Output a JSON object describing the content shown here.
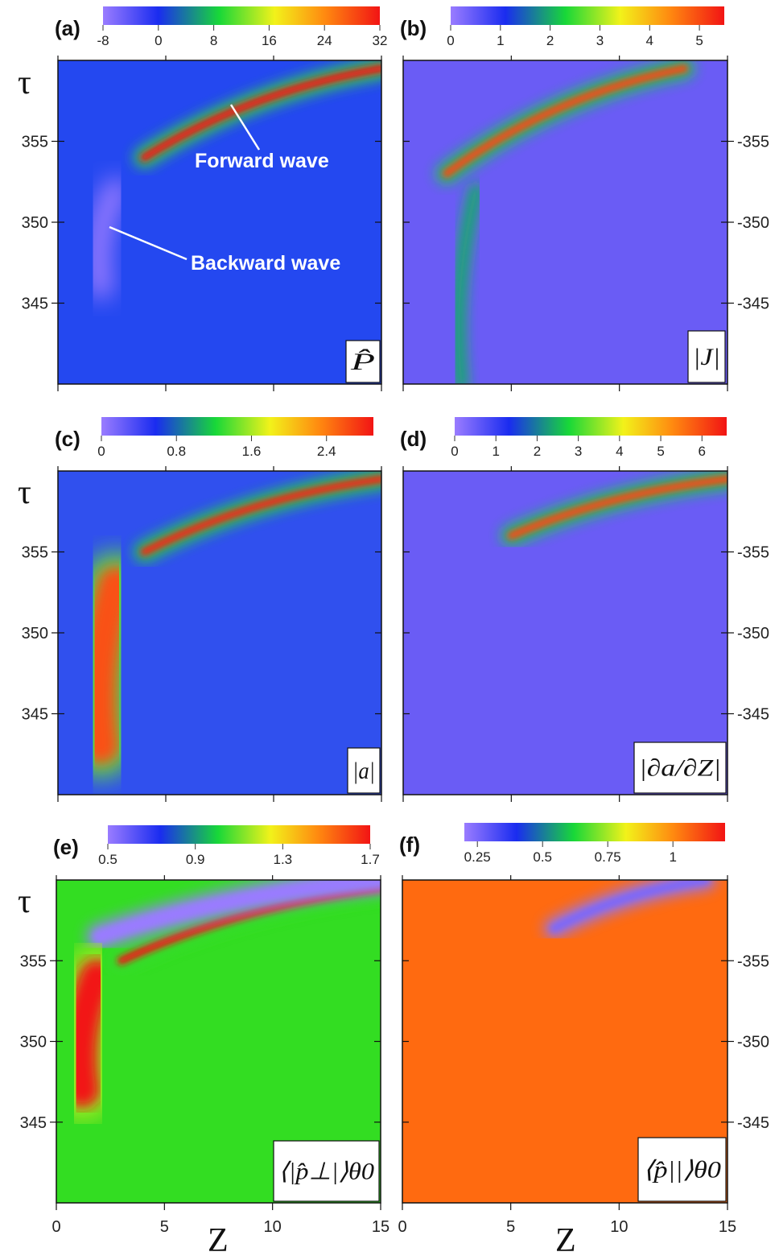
{
  "figure": {
    "xlabel": "Z",
    "ylabel": "τ",
    "annotations": {
      "forward": "Forward wave",
      "backward": "Backward wave"
    }
  },
  "chart_data": [
    {
      "id": "a",
      "type": "heatmap",
      "panel_label": "(a)",
      "quantity": "P̂",
      "x_range": [
        0,
        15
      ],
      "y_range": [
        340,
        360
      ],
      "x_ticks": [
        0,
        5,
        10,
        15
      ],
      "y_ticks": [
        345,
        350,
        355
      ],
      "colorbar": {
        "range": [
          -8,
          32
        ],
        "ticks": [
          "-8",
          "0",
          "8",
          "16",
          "24",
          "32"
        ]
      },
      "background": "#2448f0",
      "features": [
        {
          "kind": "forward_wave",
          "z_start": 4,
          "z_end": 15,
          "tau_start": 354,
          "tau_end": 359.5,
          "peak": 32
        },
        {
          "kind": "backward_wave",
          "z": 2,
          "tau_range": [
            346,
            352
          ],
          "value": -8
        }
      ]
    },
    {
      "id": "b",
      "type": "heatmap",
      "panel_label": "(b)",
      "quantity": "|J|",
      "x_range": [
        0,
        15
      ],
      "y_range": [
        340,
        360
      ],
      "x_ticks": [
        0,
        5,
        10,
        15
      ],
      "y_ticks": [
        345,
        350,
        355
      ],
      "colorbar": {
        "range": [
          0,
          5.5
        ],
        "ticks": [
          "0",
          "1",
          "2",
          "3",
          "4",
          "5"
        ]
      },
      "background": "#6a5cf5",
      "features": [
        {
          "kind": "forward_wave",
          "z_start": 2,
          "z_end": 13,
          "tau_start": 353,
          "tau_end": 359.5,
          "peak": 5
        },
        {
          "kind": "trail",
          "z": 2.7,
          "tau_range": [
            340,
            352
          ],
          "value": 2
        }
      ]
    },
    {
      "id": "c",
      "type": "heatmap",
      "panel_label": "(c)",
      "quantity": "|a|",
      "x_range": [
        0,
        15
      ],
      "y_range": [
        340,
        360
      ],
      "x_ticks": [
        0,
        5,
        10,
        15
      ],
      "y_ticks": [
        345,
        350,
        355
      ],
      "colorbar": {
        "range": [
          0,
          2.9
        ],
        "ticks": [
          "0",
          "0.8",
          "1.6",
          "2.4"
        ]
      },
      "background": "#3050ee",
      "features": [
        {
          "kind": "forward_wave",
          "z_start": 4,
          "z_end": 15,
          "tau_start": 355,
          "tau_end": 359.5,
          "peak": 2.8
        },
        {
          "kind": "blob",
          "z": 2,
          "tau_range": [
            343,
            353
          ],
          "value": 2.6
        }
      ]
    },
    {
      "id": "d",
      "type": "heatmap",
      "panel_label": "(d)",
      "quantity": "|∂a/∂Z|",
      "x_range": [
        0,
        15
      ],
      "y_range": [
        340,
        360
      ],
      "x_ticks": [
        0,
        5,
        10,
        15
      ],
      "y_ticks": [
        345,
        350,
        355
      ],
      "colorbar": {
        "range": [
          0,
          6.6
        ],
        "ticks": [
          "0",
          "1",
          "2",
          "3",
          "4",
          "5",
          "6"
        ]
      },
      "background": "#6a5cf5",
      "features": [
        {
          "kind": "forward_wave",
          "z_start": 5,
          "z_end": 15,
          "tau_start": 356,
          "tau_end": 359.5,
          "peak": 6
        }
      ]
    },
    {
      "id": "e",
      "type": "heatmap",
      "panel_label": "(e)",
      "quantity": "⟨|p̂⊥|⟩θ0",
      "x_range": [
        0,
        15
      ],
      "y_range": [
        340,
        360
      ],
      "x_ticks": [
        0,
        5,
        10,
        15
      ],
      "y_ticks": [
        345,
        350,
        355
      ],
      "colorbar": {
        "range": [
          0.5,
          1.7
        ],
        "ticks": [
          "0.5",
          "0.9",
          "1.3",
          "1.7"
        ]
      },
      "background": "#33dd22",
      "features": [
        {
          "kind": "forward_wave",
          "z_start": 3,
          "z_end": 15,
          "tau_start": 355,
          "tau_end": 359.5,
          "peak": 1.7
        },
        {
          "kind": "dark_band",
          "z_start": 2,
          "z_end": 15,
          "tau_start": 356.5,
          "tau_end": 360,
          "value": 0.5
        },
        {
          "kind": "blob",
          "z": 1.2,
          "tau_range": [
            347,
            354
          ],
          "value": 1.7
        }
      ]
    },
    {
      "id": "f",
      "type": "heatmap",
      "panel_label": "(f)",
      "quantity": "⟨p̂||⟩θ0",
      "x_range": [
        0,
        15
      ],
      "y_range": [
        340,
        360
      ],
      "x_ticks": [
        0,
        5,
        10,
        15
      ],
      "y_ticks": [
        345,
        350,
        355
      ],
      "colorbar": {
        "range": [
          0.2,
          1.2
        ],
        "ticks": [
          "0.25",
          "0.5",
          "0.75",
          "1"
        ]
      },
      "background": "#ff6a10",
      "features": [
        {
          "kind": "dark_streak",
          "z_start": 7,
          "z_end": 14,
          "tau_start": 357,
          "tau_end": 360,
          "value": 0.25
        }
      ]
    }
  ]
}
